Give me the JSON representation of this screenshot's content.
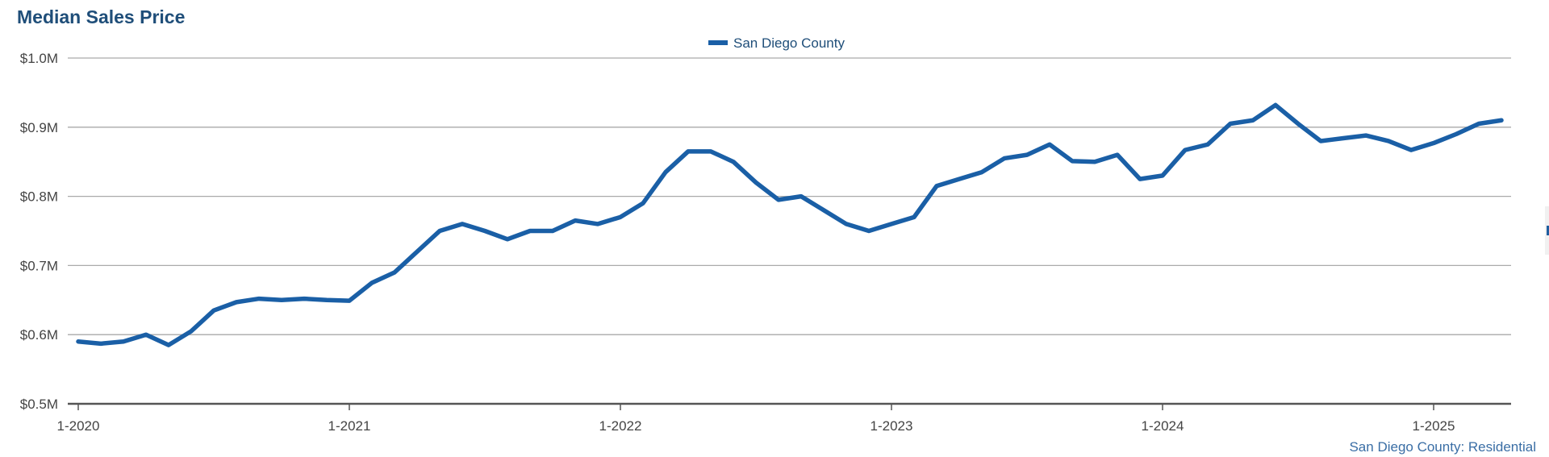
{
  "title": "Median Sales Price",
  "footer_note": "San Diego County: Residential",
  "colors": {
    "series": "#1a5fa6",
    "title": "#1f4e79",
    "grid": "#aaaaaa",
    "axis": "#555555"
  },
  "chart_data": {
    "type": "line",
    "title": "Median Sales Price",
    "xlabel": "",
    "ylabel": "",
    "ylim": [
      0.5,
      1.0
    ],
    "y_unit": "millions of dollars",
    "y_ticks": [
      {
        "value": 0.5,
        "label": "$0.5M"
      },
      {
        "value": 0.6,
        "label": "$0.6M"
      },
      {
        "value": 0.7,
        "label": "$0.7M"
      },
      {
        "value": 0.8,
        "label": "$0.8M"
      },
      {
        "value": 0.9,
        "label": "$0.9M"
      },
      {
        "value": 1.0,
        "label": "$1.0M"
      }
    ],
    "x_ticks": [
      "1-2020",
      "1-2021",
      "1-2022",
      "1-2023",
      "1-2024",
      "1-2025"
    ],
    "grid": true,
    "legend": "top-center",
    "series": [
      {
        "name": "San Diego County",
        "x": [
          "1-2020",
          "2-2020",
          "3-2020",
          "4-2020",
          "5-2020",
          "6-2020",
          "7-2020",
          "8-2020",
          "9-2020",
          "10-2020",
          "11-2020",
          "12-2020",
          "1-2021",
          "2-2021",
          "3-2021",
          "4-2021",
          "5-2021",
          "6-2021",
          "7-2021",
          "8-2021",
          "9-2021",
          "10-2021",
          "11-2021",
          "12-2021",
          "1-2022",
          "2-2022",
          "3-2022",
          "4-2022",
          "5-2022",
          "6-2022",
          "7-2022",
          "8-2022",
          "9-2022",
          "10-2022",
          "11-2022",
          "12-2022",
          "1-2023",
          "2-2023",
          "3-2023",
          "4-2023",
          "5-2023",
          "6-2023",
          "7-2023",
          "8-2023",
          "9-2023",
          "10-2023",
          "11-2023",
          "12-2023",
          "1-2024",
          "2-2024",
          "3-2024",
          "4-2024",
          "5-2024",
          "6-2024",
          "7-2024",
          "8-2024",
          "9-2024",
          "10-2024",
          "11-2024",
          "12-2024",
          "1-2025",
          "2-2025",
          "3-2025",
          "4-2025"
        ],
        "values": [
          0.59,
          0.587,
          0.59,
          0.6,
          0.585,
          0.605,
          0.635,
          0.647,
          0.652,
          0.65,
          0.652,
          0.65,
          0.649,
          0.675,
          0.69,
          0.72,
          0.75,
          0.76,
          0.75,
          0.738,
          0.75,
          0.75,
          0.765,
          0.76,
          0.77,
          0.79,
          0.835,
          0.865,
          0.865,
          0.85,
          0.82,
          0.795,
          0.8,
          0.78,
          0.76,
          0.75,
          0.76,
          0.77,
          0.815,
          0.825,
          0.835,
          0.855,
          0.86,
          0.875,
          0.851,
          0.85,
          0.86,
          0.825,
          0.83,
          0.867,
          0.875,
          0.905,
          0.91,
          0.932,
          0.905,
          0.88,
          0.884,
          0.888,
          0.88,
          0.867,
          0.877,
          0.89,
          0.905,
          0.91
        ]
      }
    ]
  }
}
